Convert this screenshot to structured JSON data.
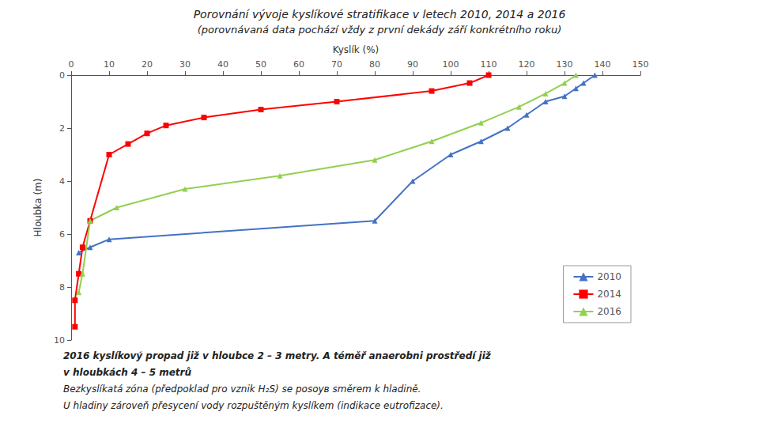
{
  "chart_data": {
    "type": "line",
    "title": "Porovnání vývoje kyslíkové stratifikace v letech 2010, 2014 a 2016",
    "subtitle": "(porovnávaná data pochází vždy z první dekády září konkrétního roku)",
    "xlabel": "Kyslík (%)",
    "ylabel": "Hloubka (m)",
    "xlim": [
      0,
      150
    ],
    "ylim": [
      10,
      0
    ],
    "xticks": [
      0,
      10,
      20,
      30,
      40,
      50,
      60,
      70,
      80,
      90,
      100,
      110,
      120,
      130,
      140,
      150
    ],
    "yticks": [
      0,
      2,
      4,
      6,
      8,
      10
    ],
    "grid": false,
    "legend": "lower right",
    "series": [
      {
        "name": "2010",
        "color": "#4472C4",
        "marker": "triangle",
        "x": [
          138,
          135,
          133,
          130,
          125,
          120,
          115,
          108,
          100,
          90,
          80,
          10,
          5,
          2
        ],
        "values": [
          0,
          0.3,
          0.5,
          0.8,
          1.0,
          1.5,
          2.0,
          2.5,
          3.0,
          4.0,
          5.5,
          6.2,
          6.5,
          6.7
        ]
      },
      {
        "name": "2014",
        "color": "#FF0000",
        "marker": "square",
        "x": [
          110,
          105,
          95,
          70,
          50,
          35,
          25,
          20,
          15,
          10,
          5,
          3,
          2,
          1,
          1
        ],
        "values": [
          0,
          0.3,
          0.6,
          1.0,
          1.3,
          1.6,
          1.9,
          2.2,
          2.6,
          3.0,
          5.5,
          6.5,
          7.5,
          8.5,
          9.5
        ]
      },
      {
        "name": "2016",
        "color": "#92D050",
        "marker": "triangle",
        "x": [
          133,
          130,
          125,
          118,
          108,
          95,
          80,
          55,
          30,
          12,
          5,
          3,
          2
        ],
        "values": [
          0,
          0.3,
          0.7,
          1.2,
          1.8,
          2.5,
          3.2,
          3.8,
          4.3,
          5.0,
          5.5,
          7.5,
          8.2
        ]
      }
    ],
    "annotations": [
      "2016 kyslíkový propad již v hloubce 2 – 3 metry. A téměř anaerobni prostředí již",
      "v hloubkách 4 – 5 metrů",
      "Bezkyslíkatá zóna (předpoklad pro vznik H₂S) se posoув směrem k hladině.",
      "U hladiny zároveň přesycení vody rozpuštěným kyslíkem (indikace eutrofizace)."
    ]
  }
}
